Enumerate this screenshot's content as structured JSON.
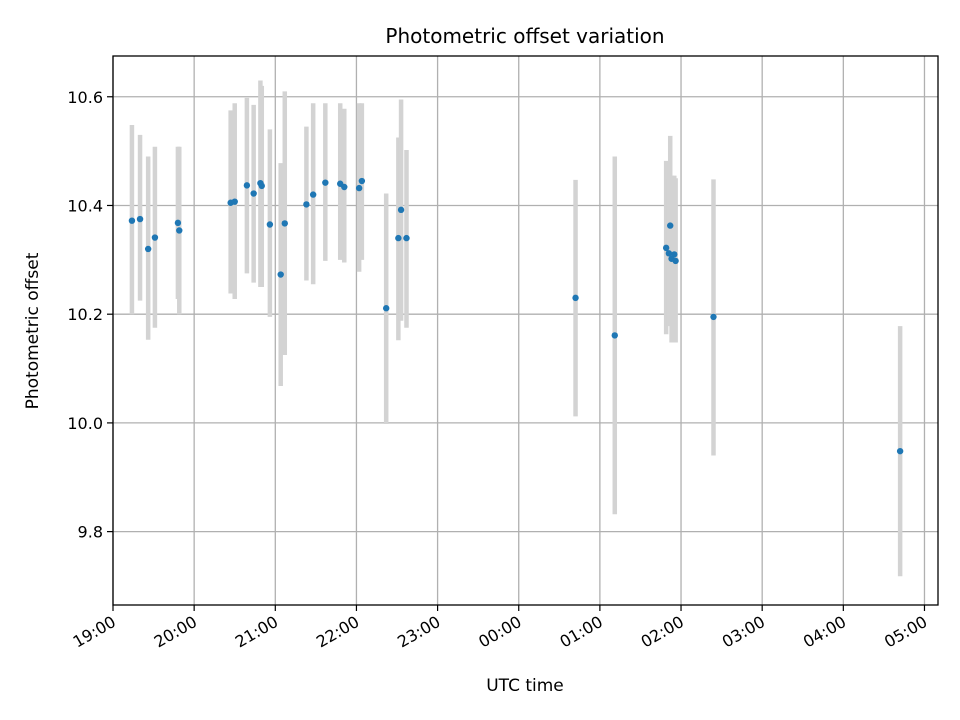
{
  "chart_data": {
    "type": "scatter",
    "title": "Photometric offset variation",
    "xlabel": "UTC time",
    "ylabel": "Photometric offset",
    "xlim": [
      "19:00",
      "05:10"
    ],
    "ylim": [
      9.665,
      10.675
    ],
    "grid": true,
    "x_ticks": [
      "19:00",
      "20:00",
      "21:00",
      "22:00",
      "23:00",
      "00:00",
      "01:00",
      "02:00",
      "03:00",
      "04:00",
      "05:00"
    ],
    "y_ticks": [
      "9.8",
      "10.0",
      "10.2",
      "10.4",
      "10.6"
    ],
    "point_color": "#1f77b4",
    "errorbar_color": "#d3d3d3",
    "points": [
      {
        "x": "19:14",
        "y": 10.372,
        "ymin": 10.2,
        "ymax": 10.548
      },
      {
        "x": "19:20",
        "y": 10.375,
        "ymin": 10.225,
        "ymax": 10.53
      },
      {
        "x": "19:26",
        "y": 10.32,
        "ymin": 10.153,
        "ymax": 10.49
      },
      {
        "x": "19:31",
        "y": 10.341,
        "ymin": 10.175,
        "ymax": 10.508
      },
      {
        "x": "19:48",
        "y": 10.368,
        "ymin": 10.228,
        "ymax": 10.508
      },
      {
        "x": "19:49",
        "y": 10.354,
        "ymin": 10.2,
        "ymax": 10.508
      },
      {
        "x": "20:27",
        "y": 10.405,
        "ymin": 10.238,
        "ymax": 10.575
      },
      {
        "x": "20:30",
        "y": 10.407,
        "ymin": 10.228,
        "ymax": 10.588
      },
      {
        "x": "20:39",
        "y": 10.437,
        "ymin": 10.275,
        "ymax": 10.598
      },
      {
        "x": "20:44",
        "y": 10.422,
        "ymin": 10.258,
        "ymax": 10.585
      },
      {
        "x": "20:49",
        "y": 10.441,
        "ymin": 10.25,
        "ymax": 10.63
      },
      {
        "x": "20:50",
        "y": 10.436,
        "ymin": 10.25,
        "ymax": 10.62
      },
      {
        "x": "20:56",
        "y": 10.365,
        "ymin": 10.195,
        "ymax": 10.54
      },
      {
        "x": "21:04",
        "y": 10.273,
        "ymin": 10.068,
        "ymax": 10.478
      },
      {
        "x": "21:07",
        "y": 10.367,
        "ymin": 10.125,
        "ymax": 10.61
      },
      {
        "x": "21:23",
        "y": 10.402,
        "ymin": 10.262,
        "ymax": 10.545
      },
      {
        "x": "21:28",
        "y": 10.42,
        "ymin": 10.255,
        "ymax": 10.588
      },
      {
        "x": "21:37",
        "y": 10.442,
        "ymin": 10.298,
        "ymax": 10.588
      },
      {
        "x": "21:48",
        "y": 10.44,
        "ymin": 10.3,
        "ymax": 10.588
      },
      {
        "x": "21:51",
        "y": 10.434,
        "ymin": 10.295,
        "ymax": 10.578
      },
      {
        "x": "22:02",
        "y": 10.432,
        "ymin": 10.278,
        "ymax": 10.588
      },
      {
        "x": "22:04",
        "y": 10.445,
        "ymin": 10.3,
        "ymax": 10.588
      },
      {
        "x": "22:22",
        "y": 10.211,
        "ymin": 9.998,
        "ymax": 10.422
      },
      {
        "x": "22:31",
        "y": 10.34,
        "ymin": 10.152,
        "ymax": 10.525
      },
      {
        "x": "22:33",
        "y": 10.392,
        "ymin": 10.188,
        "ymax": 10.595
      },
      {
        "x": "22:37",
        "y": 10.34,
        "ymin": 10.175,
        "ymax": 10.502
      },
      {
        "x": "00:42",
        "y": 10.23,
        "ymin": 10.012,
        "ymax": 10.447
      },
      {
        "x": "01:11",
        "y": 10.161,
        "ymin": 9.832,
        "ymax": 10.49
      },
      {
        "x": "01:49",
        "y": 10.322,
        "ymin": 10.163,
        "ymax": 10.482
      },
      {
        "x": "01:51",
        "y": 10.312,
        "ymin": 10.178,
        "ymax": 10.45
      },
      {
        "x": "01:52",
        "y": 10.363,
        "ymin": 10.2,
        "ymax": 10.528
      },
      {
        "x": "01:53",
        "y": 10.302,
        "ymin": 10.148,
        "ymax": 10.455
      },
      {
        "x": "01:55",
        "y": 10.31,
        "ymin": 10.15,
        "ymax": 10.455
      },
      {
        "x": "01:56",
        "y": 10.298,
        "ymin": 10.148,
        "ymax": 10.45
      },
      {
        "x": "02:24",
        "y": 10.195,
        "ymin": 9.94,
        "ymax": 10.448
      },
      {
        "x": "04:42",
        "y": 9.948,
        "ymin": 9.718,
        "ymax": 10.178
      }
    ]
  }
}
